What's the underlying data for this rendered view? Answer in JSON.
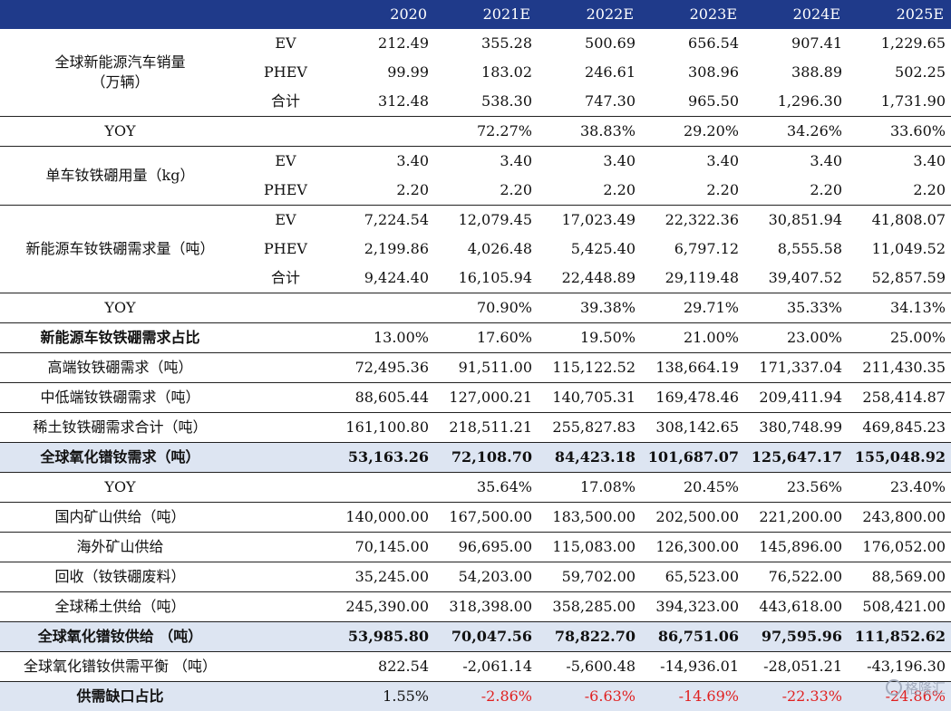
{
  "header": {
    "years": [
      "2020",
      "2021E",
      "2022E",
      "2023E",
      "2024E",
      "2025E"
    ]
  },
  "rows": {
    "sales": {
      "label": "全球新能源汽车销量",
      "unit": "（万辆）",
      "ev": {
        "sub": "EV",
        "values": [
          "212.49",
          "355.28",
          "500.69",
          "656.54",
          "907.41",
          "1,229.65"
        ]
      },
      "phev": {
        "sub": "PHEV",
        "values": [
          "99.99",
          "183.02",
          "246.61",
          "308.96",
          "388.89",
          "502.25"
        ]
      },
      "total": {
        "sub": "合计",
        "values": [
          "312.48",
          "538.30",
          "747.30",
          "965.50",
          "1,296.30",
          "1,731.90"
        ]
      }
    },
    "yoy1": {
      "label": "YOY",
      "values": [
        "",
        "72.27%",
        "38.83%",
        "29.20%",
        "34.26%",
        "33.60%"
      ]
    },
    "usage": {
      "label": "单车钕铁硼用量（kg）",
      "ev": {
        "sub": "EV",
        "values": [
          "3.40",
          "3.40",
          "3.40",
          "3.40",
          "3.40",
          "3.40"
        ]
      },
      "phev": {
        "sub": "PHEV",
        "values": [
          "2.20",
          "2.20",
          "2.20",
          "2.20",
          "2.20",
          "2.20"
        ]
      }
    },
    "nev_demand": {
      "label": "新能源车钕铁硼需求量（吨）",
      "ev": {
        "sub": "EV",
        "values": [
          "7,224.54",
          "12,079.45",
          "17,023.49",
          "22,322.36",
          "30,851.94",
          "41,808.07"
        ]
      },
      "phev": {
        "sub": "PHEV",
        "values": [
          "2,199.86",
          "4,026.48",
          "5,425.40",
          "6,797.12",
          "8,555.58",
          "11,049.52"
        ]
      },
      "total": {
        "sub": "合计",
        "values": [
          "9,424.40",
          "16,105.94",
          "22,448.89",
          "29,119.48",
          "39,407.52",
          "52,857.59"
        ]
      }
    },
    "yoy2": {
      "label": "YOY",
      "values": [
        "",
        "70.90%",
        "39.38%",
        "29.71%",
        "35.33%",
        "34.13%"
      ]
    },
    "share": {
      "label": "新能源车钕铁硼需求占比",
      "values": [
        "13.00%",
        "17.60%",
        "19.50%",
        "21.00%",
        "23.00%",
        "25.00%"
      ]
    },
    "high_end": {
      "label": "高端钕铁硼需求（吨）",
      "values": [
        "72,495.36",
        "91,511.00",
        "115,122.52",
        "138,664.19",
        "171,337.04",
        "211,430.35"
      ]
    },
    "mid_low": {
      "label": "中低端钕铁硼需求（吨）",
      "values": [
        "88,605.44",
        "127,000.21",
        "140,705.31",
        "169,478.46",
        "209,411.94",
        "258,414.87"
      ]
    },
    "re_demand": {
      "label": "稀土钕铁硼需求合计（吨）",
      "values": [
        "161,100.80",
        "218,511.21",
        "255,827.83",
        "308,142.65",
        "380,748.99",
        "469,845.23"
      ]
    },
    "oxide_demand": {
      "label": "全球氧化镨钕需求（吨）",
      "values": [
        "53,163.26",
        "72,108.70",
        "84,423.18",
        "101,687.07",
        "125,647.17",
        "155,048.92"
      ]
    },
    "yoy3": {
      "label": "YOY",
      "values": [
        "",
        "35.64%",
        "17.08%",
        "20.45%",
        "23.56%",
        "23.40%"
      ]
    },
    "domestic": {
      "label": "国内矿山供给（吨）",
      "values": [
        "140,000.00",
        "167,500.00",
        "183,500.00",
        "202,500.00",
        "221,200.00",
        "243,800.00"
      ]
    },
    "overseas": {
      "label": "海外矿山供给",
      "values": [
        "70,145.00",
        "96,695.00",
        "115,083.00",
        "126,300.00",
        "145,896.00",
        "176,052.00"
      ]
    },
    "recycle": {
      "label": "回收（钕铁硼废料）",
      "values": [
        "35,245.00",
        "54,203.00",
        "59,702.00",
        "65,523.00",
        "76,522.00",
        "88,569.00"
      ]
    },
    "re_supply": {
      "label": "全球稀土供给（吨）",
      "values": [
        "245,390.00",
        "318,398.00",
        "358,285.00",
        "394,323.00",
        "443,618.00",
        "508,421.00"
      ]
    },
    "oxide_supply": {
      "label": "全球氧化镨钕供给 （吨）",
      "values": [
        "53,985.80",
        "70,047.56",
        "78,822.70",
        "86,751.06",
        "97,595.96",
        "111,852.62"
      ]
    },
    "balance": {
      "label": "全球氧化镨钕供需平衡 （吨）",
      "values": [
        "822.54",
        "-2,061.14",
        "-5,600.48",
        "-14,936.01",
        "-28,051.21",
        "-43,196.30"
      ]
    },
    "gap": {
      "label": "供需缺口占比",
      "values": [
        "1.55%",
        "-2.86%",
        "-6.63%",
        "-14.69%",
        "-22.33%",
        "-24.86%"
      ]
    }
  },
  "watermark": "格隆汇",
  "colors": {
    "header_bg": "#1f3a8a",
    "shaded_row": "#dde5f2",
    "negative": "#e02020"
  }
}
